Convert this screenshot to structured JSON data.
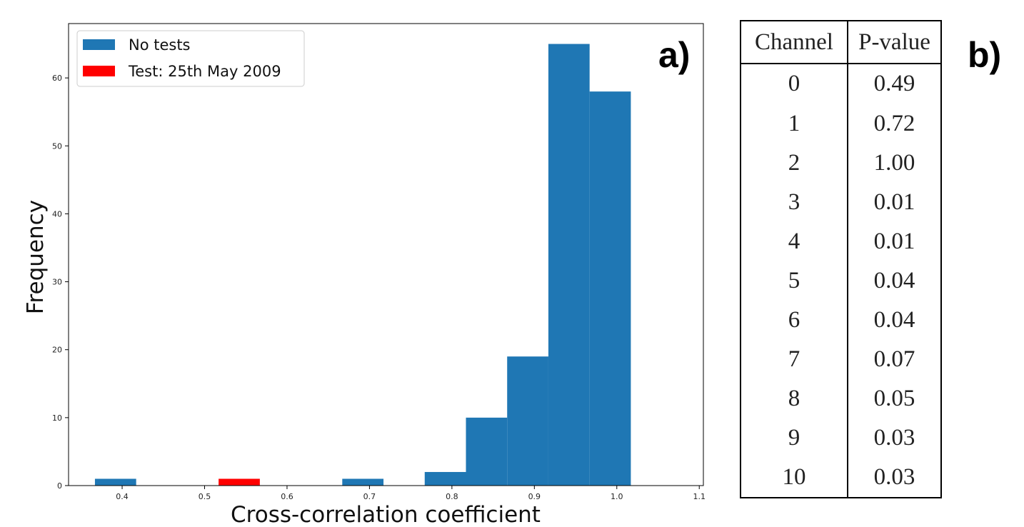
{
  "panel_labels": {
    "a": "a)",
    "b": "b)"
  },
  "chart_data": {
    "type": "bar",
    "xlabel": "Cross-correlation coefficient",
    "ylabel": "Frequency",
    "xlim": [
      0.335,
      1.105
    ],
    "ylim": [
      0,
      68
    ],
    "xticks": [
      "0.4",
      "0.5",
      "0.6",
      "0.7",
      "0.8",
      "0.9",
      "1.0",
      "1.1"
    ],
    "yticks": [
      "0",
      "10",
      "20",
      "30",
      "40",
      "50",
      "60"
    ],
    "legend_position": "top-left",
    "grid": false,
    "series": [
      {
        "name": "No tests",
        "color": "#1f77b4",
        "bins": [
          {
            "x0": 0.367,
            "x1": 0.417,
            "value": 1
          },
          {
            "x0": 0.667,
            "x1": 0.717,
            "value": 1
          },
          {
            "x0": 0.767,
            "x1": 0.817,
            "value": 2
          },
          {
            "x0": 0.817,
            "x1": 0.867,
            "value": 10
          },
          {
            "x0": 0.867,
            "x1": 0.917,
            "value": 19
          },
          {
            "x0": 0.917,
            "x1": 0.967,
            "value": 65
          },
          {
            "x0": 0.967,
            "x1": 1.017,
            "value": 58
          }
        ]
      },
      {
        "name": "Test: 25th May 2009",
        "color": "#ff0000",
        "bins": [
          {
            "x0": 0.517,
            "x1": 0.567,
            "value": 1
          }
        ]
      }
    ]
  },
  "table": {
    "headers": [
      "Channel",
      "P-value"
    ],
    "rows": [
      [
        "0",
        "0.49"
      ],
      [
        "1",
        "0.72"
      ],
      [
        "2",
        "1.00"
      ],
      [
        "3",
        "0.01"
      ],
      [
        "4",
        "0.01"
      ],
      [
        "5",
        "0.04"
      ],
      [
        "6",
        "0.04"
      ],
      [
        "7",
        "0.07"
      ],
      [
        "8",
        "0.05"
      ],
      [
        "9",
        "0.03"
      ],
      [
        "10",
        "0.03"
      ]
    ]
  }
}
